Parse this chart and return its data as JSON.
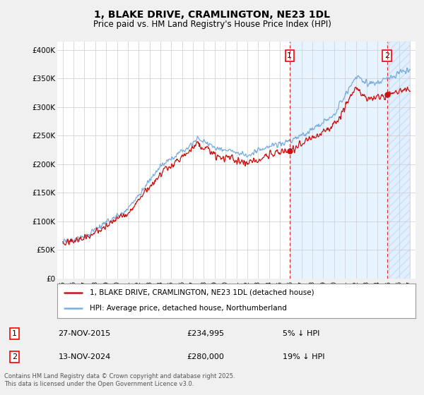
{
  "title": "1, BLAKE DRIVE, CRAMLINGTON, NE23 1DL",
  "subtitle": "Price paid vs. HM Land Registry's House Price Index (HPI)",
  "ylabel_ticks": [
    "£0",
    "£50K",
    "£100K",
    "£150K",
    "£200K",
    "£250K",
    "£300K",
    "£350K",
    "£400K"
  ],
  "ylim": [
    0,
    415000
  ],
  "xlim_start": 1994.5,
  "xlim_end": 2027.5,
  "hpi_color": "#7aade0",
  "price_color": "#cc1111",
  "marker1_date": 2015.9,
  "marker2_date": 2024.87,
  "marker1_label": "27-NOV-2015",
  "marker1_price": "£234,995",
  "marker1_hpi": "5% ↓ HPI",
  "marker2_label": "13-NOV-2024",
  "marker2_price": "£280,000",
  "marker2_hpi": "19% ↓ HPI",
  "legend_line1": "1, BLAKE DRIVE, CRAMLINGTON, NE23 1DL (detached house)",
  "legend_line2": "HPI: Average price, detached house, Northumberland",
  "footer": "Contains HM Land Registry data © Crown copyright and database right 2025.\nThis data is licensed under the Open Government Licence v3.0.",
  "background_color": "#f0f0f0",
  "plot_bg_color": "#ffffff",
  "shade_color": "#ddeeff",
  "hatch_color": "#bbccee"
}
